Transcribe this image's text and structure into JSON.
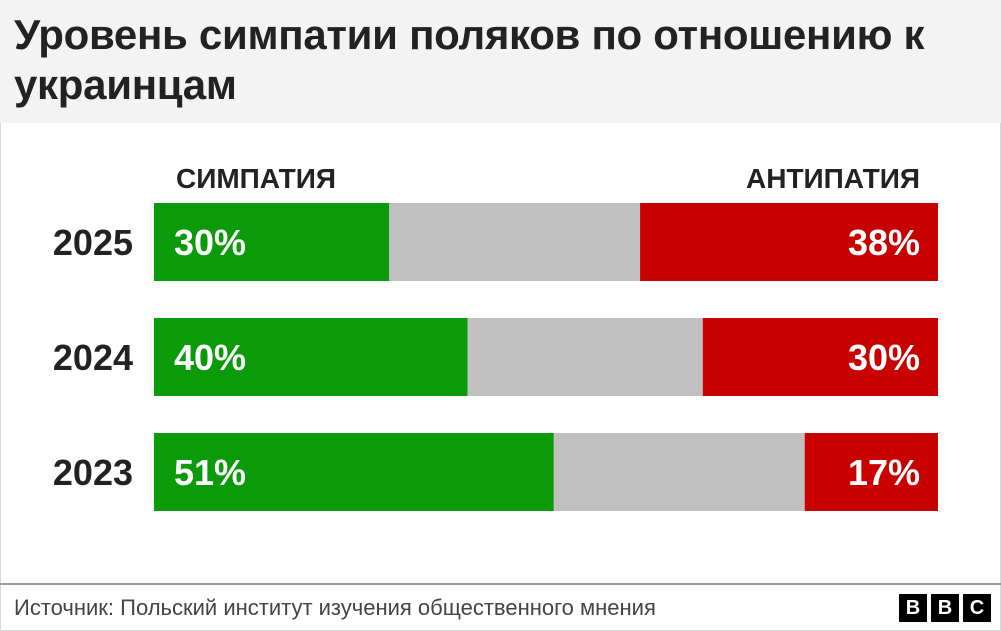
{
  "header": {
    "title": "Уровень симпатии поляков по отношению к украинцам"
  },
  "footer": {
    "source": "Источник: Польский институт изучения общественного мнения",
    "logo_letters": [
      "B",
      "B",
      "C"
    ]
  },
  "chart_data": {
    "type": "bar",
    "stacked": true,
    "orientation": "horizontal",
    "categories": [
      "2025",
      "2024",
      "2023"
    ],
    "series": [
      {
        "name": "СИМПАТИЯ",
        "values": [
          30,
          40,
          51
        ],
        "labels": [
          "30%",
          "40%",
          "51%"
        ],
        "color": "#0a9a0a"
      },
      {
        "name": "",
        "values": [
          32,
          30,
          32
        ],
        "color": "#c0c0c0"
      },
      {
        "name": "АНТИПАТИЯ",
        "values": [
          38,
          30,
          17
        ],
        "labels": [
          "38%",
          "30%",
          "17%"
        ],
        "color": "#c80000"
      }
    ],
    "xlim": [
      0,
      100
    ],
    "legend_position": "top"
  }
}
